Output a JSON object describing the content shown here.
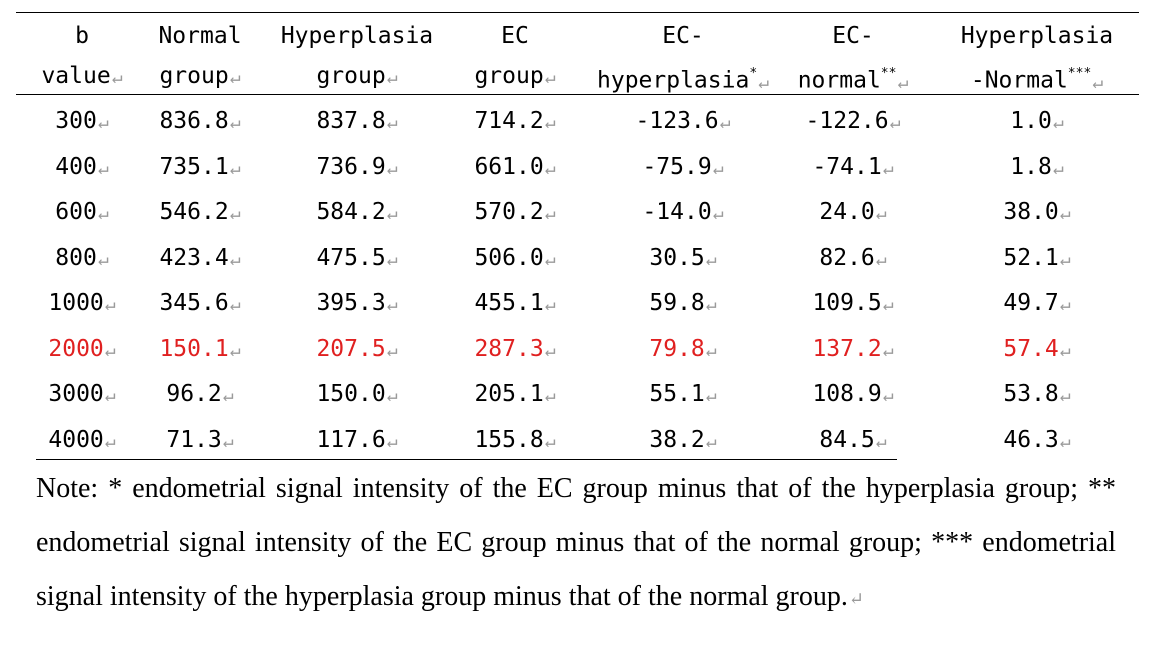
{
  "mark": "↵",
  "headers": [
    {
      "line1": "b",
      "line2": "value"
    },
    {
      "line1": "Normal",
      "line2": "group"
    },
    {
      "line1": "Hyperplasia",
      "line2": "group"
    },
    {
      "line1": "EC",
      "line2": "group"
    },
    {
      "line1": "EC-",
      "line2": "hyperplasia",
      "sup": "*"
    },
    {
      "line1": "EC-",
      "line2": "normal",
      "sup": "**"
    },
    {
      "line1": "Hyperplasia",
      "line2": "-Normal",
      "sup": "***"
    }
  ],
  "rows": [
    {
      "cells": [
        "300",
        "836.8",
        "837.8",
        "714.2",
        "-123.6",
        "-122.6",
        "1.0"
      ],
      "highlight": false
    },
    {
      "cells": [
        "400",
        "735.1",
        "736.9",
        "661.0",
        "-75.9",
        "-74.1",
        "1.8"
      ],
      "highlight": false
    },
    {
      "cells": [
        "600",
        "546.2",
        "584.2",
        "570.2",
        "-14.0",
        "24.0",
        "38.0"
      ],
      "highlight": false
    },
    {
      "cells": [
        "800",
        "423.4",
        "475.5",
        "506.0",
        "30.5",
        "82.6",
        "52.1"
      ],
      "highlight": false
    },
    {
      "cells": [
        "1000",
        "345.6",
        "395.3",
        "455.1",
        "59.8",
        "109.5",
        "49.7"
      ],
      "highlight": false
    },
    {
      "cells": [
        "2000",
        "150.1",
        "207.5",
        "287.3",
        "79.8",
        "137.2",
        "57.4"
      ],
      "highlight": true
    },
    {
      "cells": [
        "3000",
        "96.2",
        "150.0",
        "205.1",
        "55.1",
        "108.9",
        "53.8"
      ],
      "highlight": false
    },
    {
      "cells": [
        "4000",
        "71.3",
        "117.6",
        "155.8",
        "38.2",
        "84.5",
        "46.3"
      ],
      "highlight": false
    }
  ],
  "highlight_color": "#e02020",
  "note": "Note: * endometrial signal intensity of the EC group minus that of the hyperplasia group; ** endometrial signal intensity of the EC group minus that of the normal group; *** endometrial signal intensity of the hyperplasia group minus that of the normal group."
}
